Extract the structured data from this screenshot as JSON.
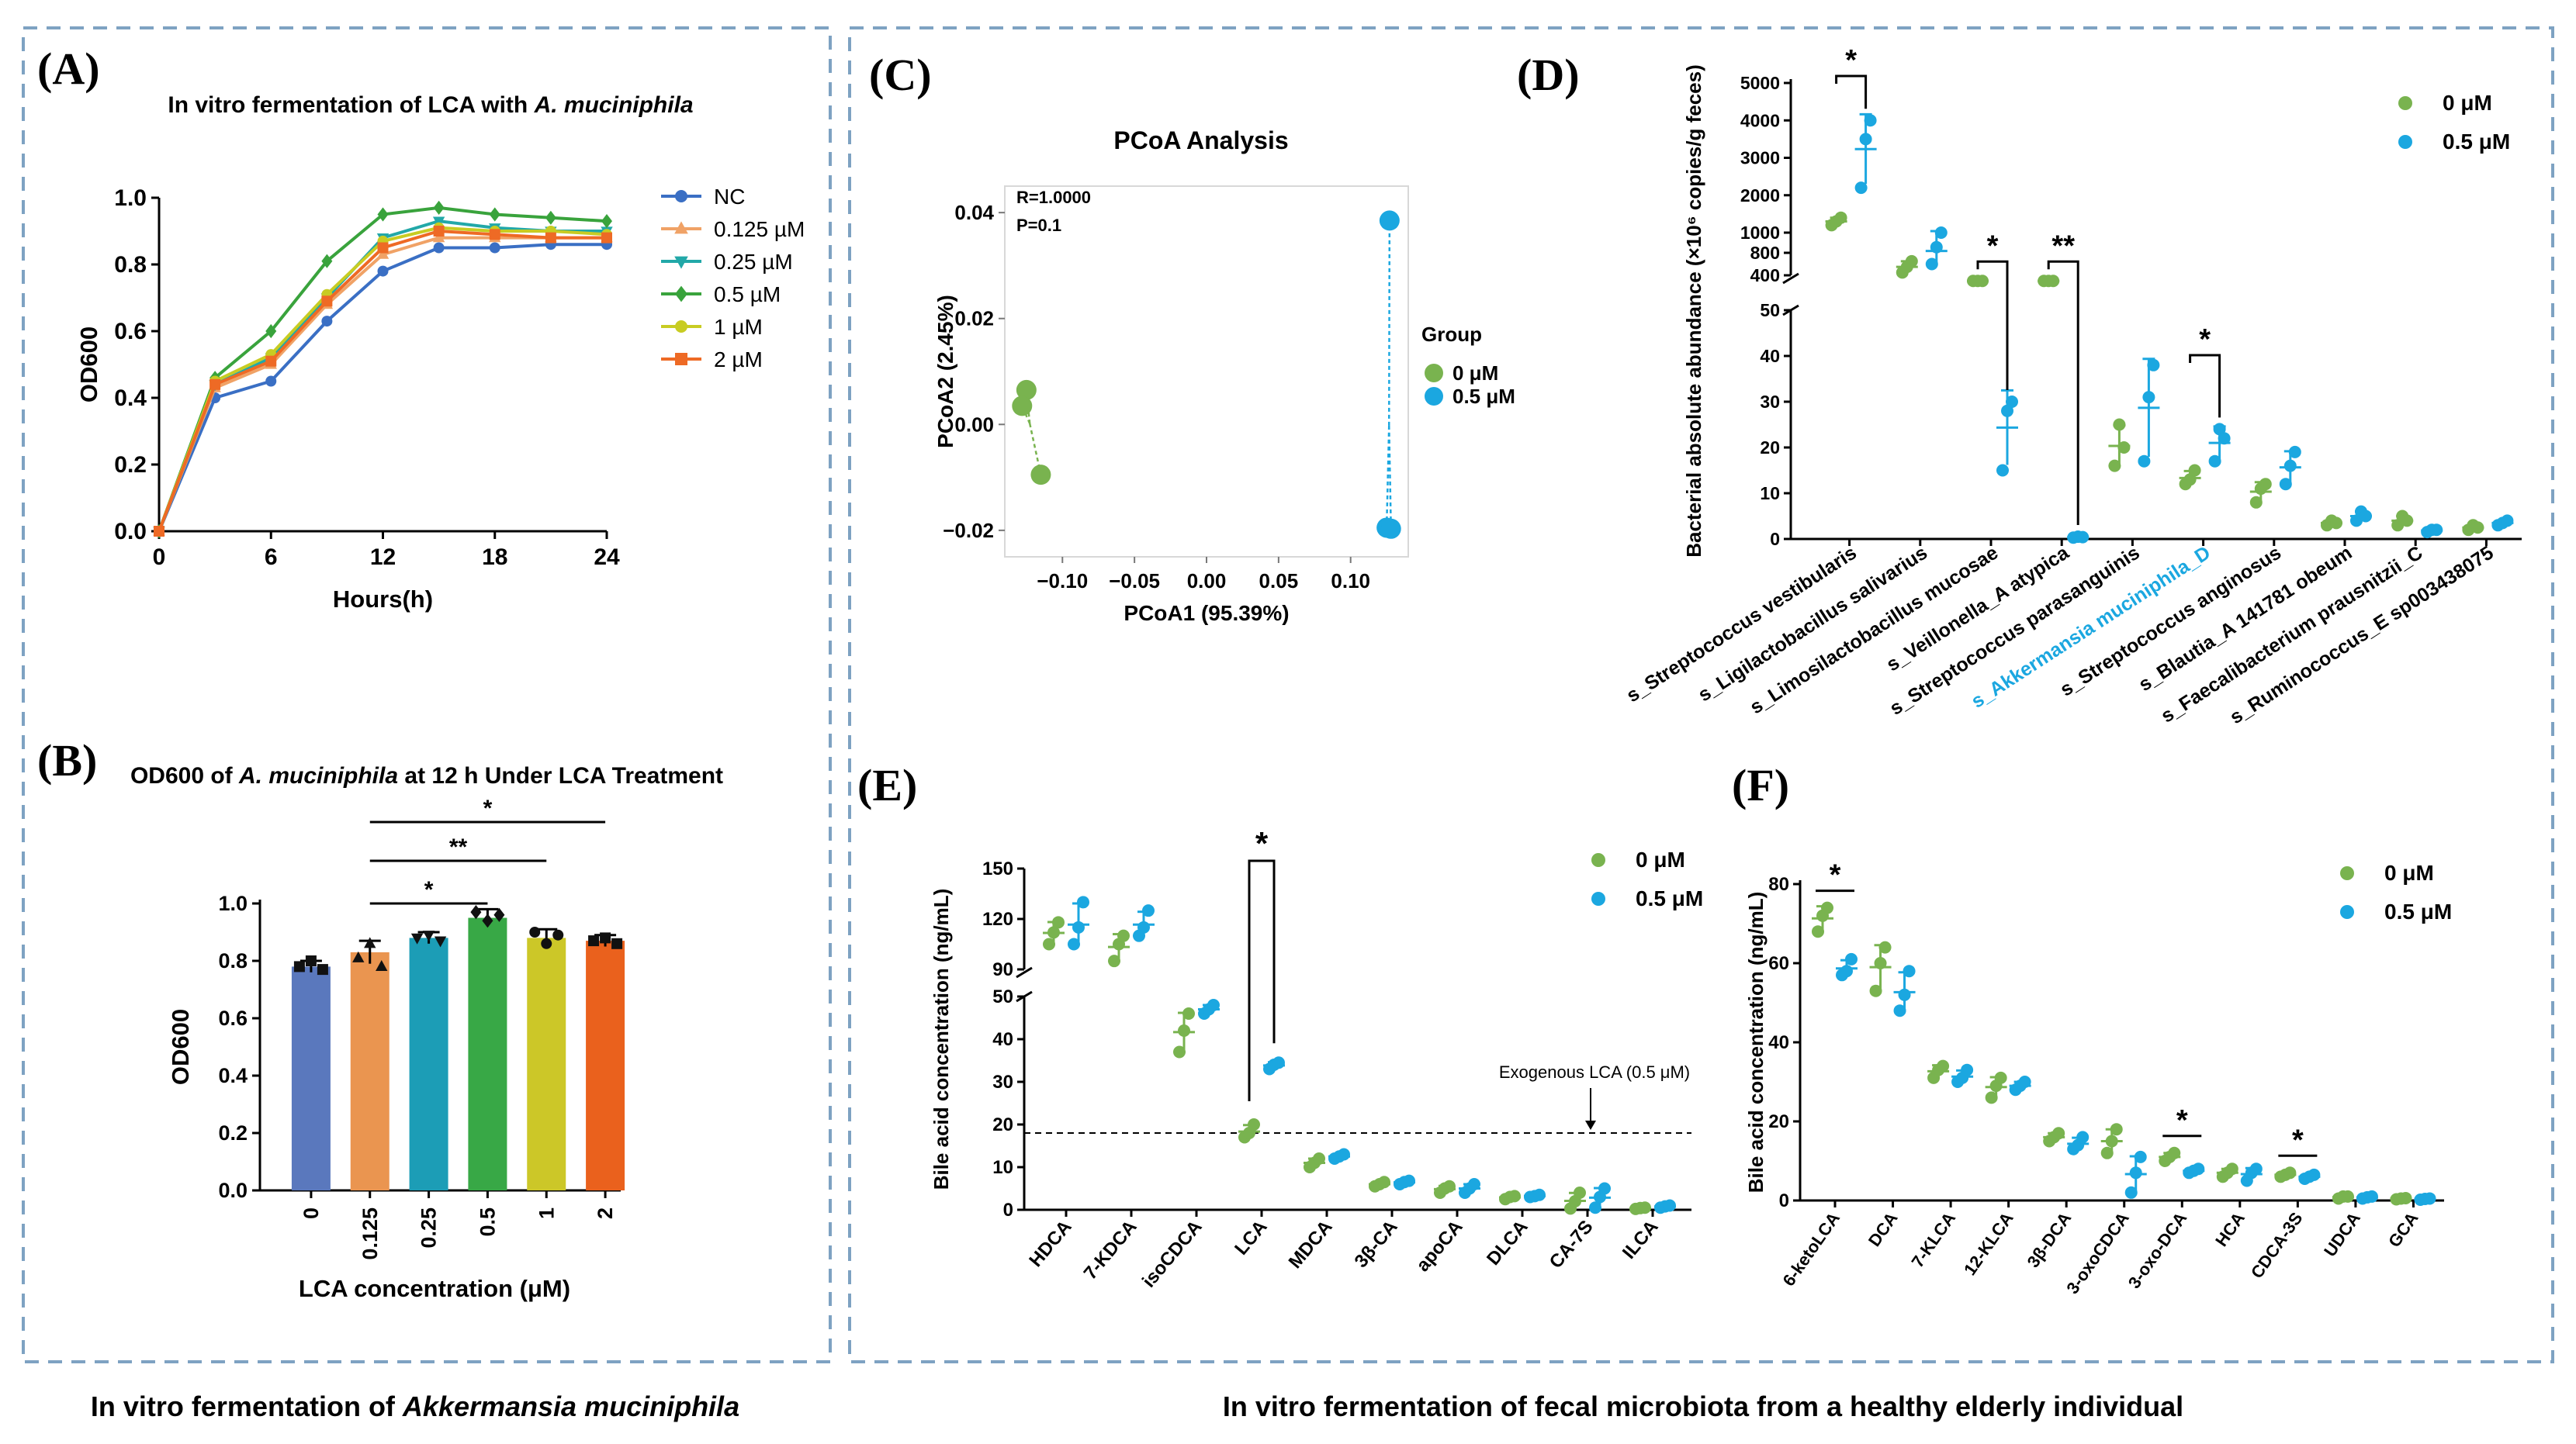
{
  "colors": {
    "frame": "#7ea2c2",
    "green": "#79b34f",
    "blue": "#1ba7e0",
    "akk": "#1ba7e0"
  },
  "footer": {
    "left_prefix": "In vitro fermentation of ",
    "left_italic": "Akkermansia muciniphila",
    "right": "In vitro fermentation of fecal microbiota from a healthy elderly individual"
  },
  "chart_data": [
    {
      "id": "A",
      "panel_label": "(A)",
      "type": "line",
      "title": "In vitro fermentation of LCA with ",
      "title_italic": "A. muciniphila",
      "xlabel": "Hours(h)",
      "ylabel": "OD600",
      "x": [
        0,
        3,
        6,
        9,
        12,
        15,
        18,
        21,
        24
      ],
      "xticks": [
        "0",
        "6",
        "12",
        "18",
        "24"
      ],
      "yticks": [
        "0.0",
        "0.2",
        "0.4",
        "0.6",
        "0.8",
        "1.0"
      ],
      "xlim": [
        0,
        24
      ],
      "ylim": [
        0,
        1
      ],
      "series": [
        {
          "name": "NC",
          "color": "#3a6fc4",
          "marker": "circle",
          "values": [
            0.0,
            0.4,
            0.45,
            0.63,
            0.78,
            0.85,
            0.85,
            0.86,
            0.86
          ]
        },
        {
          "name": "0.125 µM",
          "color": "#f0a266",
          "marker": "triangle",
          "values": [
            0.0,
            0.43,
            0.5,
            0.68,
            0.83,
            0.88,
            0.88,
            0.88,
            0.88
          ]
        },
        {
          "name": "0.25 µM",
          "color": "#22a8a8",
          "marker": "tri-down",
          "values": [
            0.0,
            0.44,
            0.52,
            0.7,
            0.88,
            0.93,
            0.91,
            0.9,
            0.9
          ]
        },
        {
          "name": "0.5 µM",
          "color": "#39a33c",
          "marker": "diamond",
          "values": [
            0.0,
            0.46,
            0.6,
            0.81,
            0.95,
            0.97,
            0.95,
            0.94,
            0.93
          ]
        },
        {
          "name": "1 µM",
          "color": "#c8cc22",
          "marker": "circle",
          "values": [
            0.0,
            0.45,
            0.53,
            0.71,
            0.87,
            0.91,
            0.9,
            0.9,
            0.89
          ]
        },
        {
          "name": "2 µM",
          "color": "#ee6a25",
          "marker": "square",
          "values": [
            0.0,
            0.44,
            0.51,
            0.69,
            0.85,
            0.9,
            0.89,
            0.88,
            0.88
          ]
        }
      ]
    },
    {
      "id": "B",
      "panel_label": "(B)",
      "type": "bar",
      "title": "OD600 of ",
      "title_italic": "A. muciniphila",
      "title_suffix": " at 12 h Under LCA Treatment",
      "xlabel": "LCA concentration (μM)",
      "ylabel": "OD600",
      "categories": [
        "0",
        "0.125",
        "0.25",
        "0.5",
        "1",
        "2"
      ],
      "values": [
        0.78,
        0.83,
        0.88,
        0.95,
        0.88,
        0.87
      ],
      "errors": [
        0.02,
        0.04,
        0.02,
        0.03,
        0.03,
        0.02
      ],
      "colors": [
        "#5a78bd",
        "#ea9550",
        "#1c9db6",
        "#38a846",
        "#ccc728",
        "#ea611d"
      ],
      "points": [
        [
          0.78,
          0.8,
          0.77
        ],
        [
          0.81,
          0.86,
          0.78
        ],
        [
          0.88,
          0.89,
          0.87
        ],
        [
          0.97,
          0.94,
          0.96
        ],
        [
          0.9,
          0.86,
          0.89
        ],
        [
          0.87,
          0.88,
          0.86
        ]
      ],
      "yticks": [
        "0.0",
        "0.2",
        "0.4",
        "0.6",
        "0.8",
        "1.0"
      ],
      "ylim": [
        0,
        1
      ],
      "sig": [
        {
          "from": 1,
          "to": 3,
          "label": "*"
        },
        {
          "from": 1,
          "to": 4,
          "label": "**"
        },
        {
          "from": 1,
          "to": 5,
          "label": "*"
        }
      ]
    },
    {
      "id": "C",
      "panel_label": "(C)",
      "type": "scatter",
      "title": "PCoA Analysis",
      "xlabel": "PCoA1 (95.39%)",
      "ylabel": "PCoA2 (2.45%)",
      "stat_r": "R=1.0000",
      "stat_p": "P=0.1",
      "legend_title": "Group",
      "xlim": [
        -0.14,
        0.14
      ],
      "ylim": [
        -0.025,
        0.045
      ],
      "xticks": [
        "−0.10",
        "−0.05",
        "0.00",
        "0.05",
        "0.10"
      ],
      "xtick_values": [
        -0.1,
        -0.05,
        0.0,
        0.05,
        0.1
      ],
      "yticks": [
        "0.04",
        "0.02",
        "0.00",
        "−0.02"
      ],
      "ytick_values": [
        0.04,
        0.02,
        0.0,
        -0.02
      ],
      "groups": [
        {
          "name": "0 μM",
          "points": [
            [
              -0.125,
              0.0065
            ],
            [
              -0.128,
              0.0035
            ],
            [
              -0.115,
              -0.0095
            ]
          ]
        },
        {
          "name": "0.5 μM",
          "points": [
            [
              0.127,
              0.0385
            ],
            [
              0.125,
              -0.0195
            ],
            [
              0.128,
              -0.0197
            ]
          ]
        }
      ]
    },
    {
      "id": "D",
      "panel_label": "(D)",
      "type": "scatter",
      "ylabel": "Bacterial absolute abundance (×10⁶ copies/g feces)",
      "legend": [
        "0 μM",
        "0.5 μM"
      ],
      "categories": [
        "s_Streptococcus vestibularis",
        "s_Ligilactobacillus salivarius",
        "s_Limosilactobacillus mucosae",
        "s_Veillonella_A atypica",
        "s_Streptococcus parasanguinis",
        "s_Akkermansia muciniphila_D",
        "s_Streptococcus anginosus",
        "s_Blautia_A 141781 obeum",
        "s_Faecalibacterium prausnitzii_C",
        "s_Ruminococcus_E sp003438075"
      ],
      "highlight_category": "s_Akkermansia muciniphila_D",
      "yticks_upper": [
        "5000",
        "4000",
        "3000",
        "2000",
        "1000",
        "800",
        "400"
      ],
      "yticks_lower": [
        "50",
        "40",
        "30",
        "20",
        "10",
        "0"
      ],
      "group0": [
        [
          1200,
          1300,
          1400
        ],
        [
          450,
          550,
          650
        ],
        [
          300,
          300,
          300
        ],
        [
          300,
          300,
          300
        ],
        [
          16,
          25,
          20
        ],
        [
          12,
          13,
          15
        ],
        [
          8,
          11,
          12
        ],
        [
          3,
          4,
          3.5
        ],
        [
          3,
          5,
          4
        ],
        [
          2,
          3,
          2.5
        ]
      ],
      "group1": [
        [
          2200,
          3500,
          4000
        ],
        [
          600,
          900,
          1000
        ],
        [
          15,
          28,
          30
        ],
        [
          0.3,
          0.5,
          0.4
        ],
        [
          17,
          31,
          38
        ],
        [
          17,
          24,
          22
        ],
        [
          12,
          16,
          19
        ],
        [
          4,
          6,
          5
        ],
        [
          1.5,
          2,
          2
        ],
        [
          3,
          3.5,
          4
        ]
      ],
      "sig": [
        {
          "index": 0,
          "label": "*"
        },
        {
          "index": 2,
          "label": "*"
        },
        {
          "index": 3,
          "label": "**"
        },
        {
          "index": 5,
          "label": "*"
        }
      ]
    },
    {
      "id": "E",
      "panel_label": "(E)",
      "type": "scatter",
      "ylabel": "Bile acid concentration (ng/mL)",
      "legend": [
        "0 μM",
        "0.5 μM"
      ],
      "categories": [
        "HDCA",
        "7-KDCA",
        "isoCDCA",
        "LCA",
        "MDCA",
        "3β-CA",
        "apoCA",
        "DLCA",
        "CA-7S",
        "ILCA"
      ],
      "yticks_upper": [
        "150",
        "120",
        "90"
      ],
      "yticks_lower": [
        "50",
        "40",
        "30",
        "20",
        "10",
        "0"
      ],
      "reference_value": 18,
      "reference_label": "Exogenous LCA (0.5 μM)",
      "group0": [
        [
          105,
          112,
          118
        ],
        [
          95,
          105,
          110
        ],
        [
          37,
          42,
          46
        ],
        [
          17,
          18,
          20
        ],
        [
          10,
          11,
          12
        ],
        [
          5.5,
          6,
          6.5
        ],
        [
          4,
          5,
          5.5
        ],
        [
          2.5,
          3,
          3.2
        ],
        [
          0.3,
          2,
          4
        ],
        [
          0.2,
          0.4,
          0.5
        ]
      ],
      "group1": [
        [
          105,
          115,
          130
        ],
        [
          110,
          115,
          125
        ],
        [
          46,
          47,
          48
        ],
        [
          33,
          34,
          34.5
        ],
        [
          12,
          12.5,
          13
        ],
        [
          6,
          6.5,
          6.8
        ],
        [
          4,
          5,
          6
        ],
        [
          3,
          3.2,
          3.5
        ],
        [
          0.5,
          3,
          5
        ],
        [
          0.5,
          0.8,
          1
        ]
      ],
      "sig": [
        {
          "index": 3,
          "label": "*"
        }
      ]
    },
    {
      "id": "F",
      "panel_label": "(F)",
      "type": "scatter",
      "ylabel": "Bile acid concentration (ng/mL)",
      "legend": [
        "0 μM",
        "0.5 μM"
      ],
      "categories": [
        "6-ketoLCA",
        "DCA",
        "7-KLCA",
        "12-KLCA",
        "3β-DCA",
        "3-oxoCDCA",
        "3-oxo-DCA",
        "HCA",
        "CDCA-3S",
        "UDCA",
        "GCA"
      ],
      "yticks": [
        "0",
        "20",
        "40",
        "60",
        "80"
      ],
      "ylim": [
        0,
        80
      ],
      "group0": [
        [
          68,
          72,
          74
        ],
        [
          53,
          60,
          64
        ],
        [
          31,
          33,
          34
        ],
        [
          26,
          29,
          31
        ],
        [
          15,
          16,
          17
        ],
        [
          12,
          15,
          18
        ],
        [
          10,
          11,
          12
        ],
        [
          6,
          7,
          8
        ],
        [
          6,
          6.5,
          7
        ],
        [
          0.5,
          1,
          1
        ],
        [
          0.3,
          0.5,
          0.6
        ]
      ],
      "group1": [
        [
          57,
          58,
          61
        ],
        [
          48,
          52,
          58
        ],
        [
          30,
          31,
          33
        ],
        [
          28,
          29,
          30
        ],
        [
          13,
          14,
          16
        ],
        [
          2,
          7,
          11
        ],
        [
          7,
          7.5,
          8
        ],
        [
          5,
          7,
          8
        ],
        [
          5.5,
          6,
          6.5
        ],
        [
          0.5,
          0.8,
          1
        ],
        [
          0.2,
          0.4,
          0.5
        ]
      ],
      "sig": [
        {
          "index": 0,
          "label": "*"
        },
        {
          "index": 6,
          "label": "*"
        },
        {
          "index": 8,
          "label": "*"
        }
      ]
    }
  ]
}
